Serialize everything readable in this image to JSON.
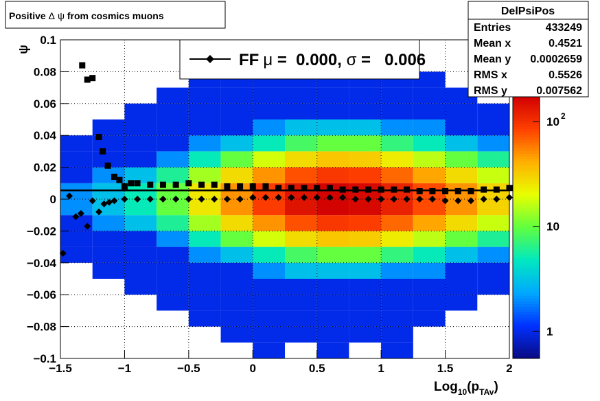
{
  "chart_data": {
    "type": "heatmap",
    "title": {
      "pre": "Positive ",
      "delta": "Δ",
      "psi": "ψ",
      "post": " from cosmics muons"
    },
    "xlabel": {
      "main": "Log",
      "sub1": "10",
      "mid": "(p",
      "sub2": "TAv",
      "end": ")"
    },
    "ylabel": "ψ",
    "xlim": [
      -1.5,
      2
    ],
    "ylim": [
      -0.1,
      0.1
    ],
    "xticks": [
      {
        "value": -1.5,
        "label": "−1.5"
      },
      {
        "value": -1,
        "label": "−1"
      },
      {
        "value": -0.5,
        "label": "−0.5"
      },
      0,
      0.5,
      1,
      1.5,
      2
    ],
    "yticks": [
      {
        "value": -0.1,
        "label": "−0.1"
      },
      {
        "value": -0.08,
        "label": "−0.08"
      },
      {
        "value": -0.06,
        "label": "−0.06"
      },
      {
        "value": -0.04,
        "label": "−0.04"
      },
      {
        "value": -0.02,
        "label": "−0.02"
      },
      0,
      0.02,
      0.04,
      0.06,
      0.08,
      0.1
    ],
    "grid": true,
    "zlim": [
      0.55,
      175
    ],
    "zlog": true,
    "zticks": [
      1,
      10,
      {
        "value": 100,
        "label": "10",
        "exponent": "2"
      }
    ],
    "palette": [
      "#0a0a80",
      "#0030ff",
      "#00a8ff",
      "#00e8c0",
      "#60ff40",
      "#e8ff00",
      "#ffb000",
      "#ff4000",
      "#d00000"
    ],
    "heatmap": {
      "xbins": [
        -1.5,
        -1.25,
        -1,
        -0.75,
        -0.5,
        -0.25,
        0,
        0.25,
        0.5,
        0.75,
        1,
        1.25,
        1.5,
        1.75,
        2
      ],
      "ybins": [
        -0.1,
        -0.09,
        -0.08,
        -0.07,
        -0.06,
        -0.05,
        -0.04,
        -0.03,
        -0.02,
        -0.01,
        0,
        0.01,
        0.02,
        0.03,
        0.04,
        0.05,
        0.06,
        0.07,
        0.08,
        0.09,
        0.1
      ],
      "z": [
        [
          0,
          0,
          0,
          0,
          0,
          0,
          1,
          0,
          1,
          0,
          1,
          0,
          0,
          0
        ],
        [
          0,
          0,
          0,
          0,
          0,
          1,
          1,
          1,
          1,
          1,
          1,
          0,
          0,
          0
        ],
        [
          0,
          0,
          0,
          0,
          1,
          1,
          1,
          1,
          1,
          1,
          1,
          1,
          0,
          0
        ],
        [
          0,
          0,
          0,
          1,
          1,
          1,
          1,
          1,
          1,
          1,
          1,
          1,
          1,
          0
        ],
        [
          0,
          0,
          1,
          1,
          1,
          1,
          1,
          1,
          1,
          1,
          1,
          1,
          1,
          1
        ],
        [
          0,
          1,
          1,
          1,
          1,
          1,
          2,
          3,
          3,
          3,
          2,
          2,
          1,
          1
        ],
        [
          1,
          1,
          1,
          1,
          2,
          3,
          5,
          8,
          10,
          10,
          7,
          5,
          3,
          2
        ],
        [
          1,
          1,
          1,
          2,
          5,
          10,
          18,
          28,
          34,
          32,
          24,
          16,
          10,
          6
        ],
        [
          1,
          2,
          3,
          6,
          14,
          28,
          50,
          77,
          94,
          88,
          66,
          44,
          28,
          17
        ],
        [
          2,
          3,
          5,
          10,
          25,
          50,
          90,
          140,
          170,
          160,
          120,
          80,
          50,
          30
        ],
        [
          2,
          3,
          5,
          10,
          25,
          50,
          90,
          140,
          170,
          160,
          120,
          80,
          50,
          30
        ],
        [
          1,
          2,
          3,
          6,
          14,
          28,
          50,
          77,
          94,
          88,
          66,
          44,
          28,
          17
        ],
        [
          1,
          1,
          1,
          2,
          5,
          10,
          18,
          28,
          34,
          32,
          24,
          16,
          10,
          6
        ],
        [
          1,
          1,
          1,
          1,
          2,
          3,
          5,
          8,
          10,
          10,
          7,
          5,
          3,
          2
        ],
        [
          0,
          1,
          1,
          1,
          1,
          1,
          2,
          3,
          3,
          3,
          2,
          2,
          1,
          1
        ],
        [
          0,
          0,
          1,
          1,
          1,
          1,
          1,
          1,
          1,
          1,
          1,
          1,
          1,
          1
        ],
        [
          0,
          0,
          0,
          1,
          1,
          1,
          1,
          1,
          1,
          1,
          1,
          1,
          1,
          0
        ],
        [
          0,
          0,
          0,
          0,
          1,
          1,
          1,
          1,
          1,
          1,
          1,
          1,
          0,
          0
        ],
        [
          0,
          0,
          0,
          0,
          0,
          1,
          1,
          1,
          1,
          1,
          1,
          0,
          0,
          0
        ],
        [
          0,
          0,
          0,
          0,
          0,
          0,
          1,
          0,
          1,
          0,
          1,
          0,
          0,
          0
        ]
      ]
    },
    "fit_line": 0.0055,
    "series": [
      {
        "marker": "square",
        "color": "#000000",
        "x": [
          -1.33,
          -1.29,
          -1.25,
          -1.2,
          -1.17,
          -1.13,
          -1.08,
          -1.04,
          -1.0,
          -0.95,
          -0.9,
          -0.8,
          -0.7,
          -0.6,
          -0.5,
          -0.4,
          -0.3,
          -0.2,
          -0.1,
          0,
          0.1,
          0.2,
          0.3,
          0.4,
          0.5,
          0.6,
          0.7,
          0.8,
          0.9,
          1.0,
          1.1,
          1.2,
          1.3,
          1.4,
          1.5,
          1.6,
          1.7,
          1.8,
          1.9,
          2.0
        ],
        "values": [
          0.084,
          0.075,
          0.076,
          0.039,
          0.03,
          0.021,
          0.014,
          0.012,
          0.008,
          0.01,
          0.01,
          0.009,
          0.009,
          0.009,
          0.01,
          0.009,
          0.009,
          0.008,
          0.008,
          0.008,
          0.008,
          0.007,
          0.007,
          0.007,
          0.007,
          0.007,
          0.006,
          0.006,
          0.006,
          0.006,
          0.006,
          0.006,
          0.005,
          0.005,
          0.005,
          0.005,
          0.005,
          0.006,
          0.006,
          0.007
        ]
      },
      {
        "marker": "diamond",
        "color": "#000000",
        "x": [
          -1.48,
          -1.43,
          -1.38,
          -1.34,
          -1.29,
          -1.25,
          -1.2,
          -1.16,
          -1.12,
          -1.08,
          -1.0,
          -0.9,
          -0.8,
          -0.7,
          -0.6,
          -0.5,
          -0.4,
          -0.3,
          -0.2,
          -0.1,
          0,
          0.1,
          0.2,
          0.3,
          0.4,
          0.5,
          0.6,
          0.7,
          0.8,
          0.9,
          1.0,
          1.1,
          1.2,
          1.3,
          1.4,
          1.5,
          1.6,
          1.7,
          1.8,
          1.9,
          2.0
        ],
        "values": [
          -0.034,
          0.002,
          -0.011,
          -0.009,
          -0.017,
          -0.001,
          -0.008,
          -0.003,
          -0.002,
          -0.001,
          0.0,
          0.0,
          0.0,
          0.0,
          0.0,
          0.0,
          0.0,
          0.0,
          0.0,
          0.0,
          0.001,
          0.001,
          0.001,
          0.001,
          0.001,
          0.001,
          0.001,
          0.001,
          0.0,
          0.0,
          0.0,
          0.0,
          0.0,
          0.0,
          0.0,
          -0.001,
          -0.001,
          -0.001,
          0.0,
          0.0,
          0.001
        ]
      }
    ],
    "legend": {
      "label": "FF",
      "mu": "μ",
      "eq1": " =  0.000, ",
      "sigma": "σ",
      "eq2": " =   0.006"
    },
    "stats": {
      "title": "DelPsiPos",
      "rows": [
        [
          "Entries",
          "433249"
        ],
        [
          "Mean x",
          "0.4521"
        ],
        [
          "Mean y",
          "0.0002659"
        ],
        [
          "RMS x",
          "0.5526"
        ],
        [
          "RMS y",
          "0.007562"
        ]
      ]
    }
  }
}
